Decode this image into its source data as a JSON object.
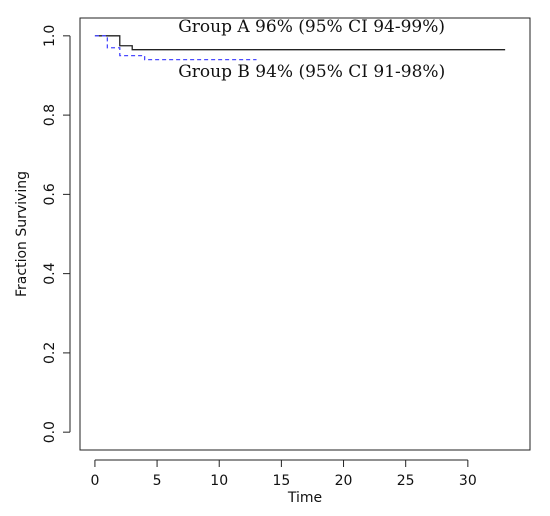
{
  "chart_data": {
    "type": "line",
    "xlabel": "Time",
    "ylabel": "Fraction Surviving",
    "xlim": [
      0,
      33
    ],
    "ylim": [
      0,
      1
    ],
    "x_ticks": [
      0,
      5,
      10,
      15,
      20,
      25,
      30
    ],
    "x_tick_labels": [
      "0",
      "5",
      "10",
      "15",
      "20",
      "25",
      "30"
    ],
    "y_ticks": [
      0,
      0.2,
      0.4,
      0.6,
      0.8,
      1
    ],
    "y_tick_labels": [
      "0.0",
      "0.2",
      "0.4",
      "0.6",
      "0.8",
      "1.0"
    ],
    "grid": false,
    "series": [
      {
        "color": "#222222",
        "line_style": "solid",
        "points": [
          {
            "x": 0,
            "y": 1.0
          },
          {
            "x": 2,
            "y": 1.0
          },
          {
            "x": 2,
            "y": 0.975
          },
          {
            "x": 3,
            "y": 0.975
          },
          {
            "x": 3,
            "y": 0.965
          },
          {
            "x": 33,
            "y": 0.965
          }
        ]
      },
      {
        "color": "#4a4aff",
        "line_style": "dashed",
        "points": [
          {
            "x": 0,
            "y": 1.0
          },
          {
            "x": 1,
            "y": 1.0
          },
          {
            "x": 1,
            "y": 0.97
          },
          {
            "x": 2,
            "y": 0.97
          },
          {
            "x": 2,
            "y": 0.95
          },
          {
            "x": 4,
            "y": 0.95
          },
          {
            "x": 4,
            "y": 0.94
          },
          {
            "x": 13,
            "y": 0.94
          }
        ]
      }
    ],
    "annotations": [
      {
        "text": "Group A 96% (95% CI 94-99%)",
        "series_index": 0,
        "x": 6.7,
        "y": 1.01
      },
      {
        "text": "Group B 94% (95% CI 91-98%)",
        "series_index": 1,
        "x": 6.7,
        "y": 0.896
      }
    ]
  }
}
